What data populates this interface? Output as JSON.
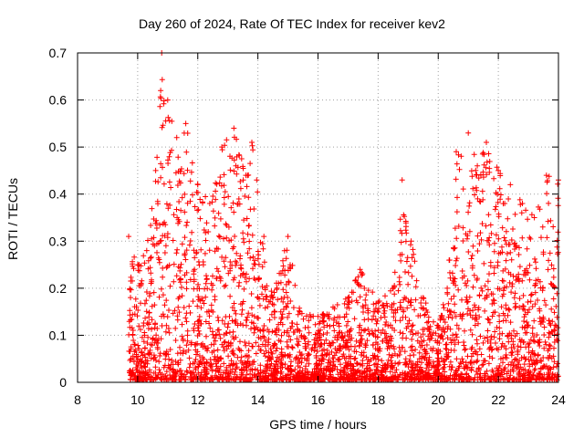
{
  "chart_data": {
    "type": "scatter",
    "title": "Day 260 of 2024, Rate Of TEC Index for receiver kev2",
    "xlabel": "GPS time / hours",
    "ylabel": "ROTI / TECUs",
    "xlim": [
      8,
      24
    ],
    "ylim": [
      0,
      0.7
    ],
    "xticks": [
      "8",
      "10",
      "12",
      "14",
      "16",
      "18",
      "20",
      "22",
      "24"
    ],
    "yticks": [
      "0",
      "0.1",
      "0.2",
      "0.3",
      "0.4",
      "0.5",
      "0.6",
      "0.7"
    ],
    "grid": true,
    "marker": "+",
    "series": [
      {
        "name": "ROTI",
        "color": "#ff0000",
        "envelope": [
          {
            "x": 9.7,
            "y": 0.31
          },
          {
            "x": 10.0,
            "y": 0.25
          },
          {
            "x": 10.3,
            "y": 0.28
          },
          {
            "x": 10.6,
            "y": 0.45
          },
          {
            "x": 10.8,
            "y": 0.7
          },
          {
            "x": 11.0,
            "y": 0.6
          },
          {
            "x": 11.3,
            "y": 0.52
          },
          {
            "x": 11.6,
            "y": 0.55
          },
          {
            "x": 12.0,
            "y": 0.42
          },
          {
            "x": 12.4,
            "y": 0.38
          },
          {
            "x": 12.8,
            "y": 0.5
          },
          {
            "x": 13.2,
            "y": 0.54
          },
          {
            "x": 13.6,
            "y": 0.44
          },
          {
            "x": 13.8,
            "y": 0.51
          },
          {
            "x": 14.2,
            "y": 0.31
          },
          {
            "x": 14.5,
            "y": 0.18
          },
          {
            "x": 15.0,
            "y": 0.31
          },
          {
            "x": 15.4,
            "y": 0.15
          },
          {
            "x": 16.0,
            "y": 0.14
          },
          {
            "x": 16.5,
            "y": 0.16
          },
          {
            "x": 17.0,
            "y": 0.18
          },
          {
            "x": 17.4,
            "y": 0.24
          },
          {
            "x": 18.0,
            "y": 0.17
          },
          {
            "x": 18.5,
            "y": 0.2
          },
          {
            "x": 18.8,
            "y": 0.43
          },
          {
            "x": 19.1,
            "y": 0.3
          },
          {
            "x": 19.5,
            "y": 0.18
          },
          {
            "x": 20.0,
            "y": 0.12
          },
          {
            "x": 20.3,
            "y": 0.2
          },
          {
            "x": 20.6,
            "y": 0.49
          },
          {
            "x": 21.0,
            "y": 0.53
          },
          {
            "x": 21.3,
            "y": 0.46
          },
          {
            "x": 21.6,
            "y": 0.51
          },
          {
            "x": 22.0,
            "y": 0.45
          },
          {
            "x": 22.4,
            "y": 0.42
          },
          {
            "x": 22.8,
            "y": 0.38
          },
          {
            "x": 23.2,
            "y": 0.35
          },
          {
            "x": 23.6,
            "y": 0.44
          },
          {
            "x": 24.0,
            "y": 0.43
          }
        ]
      }
    ]
  }
}
